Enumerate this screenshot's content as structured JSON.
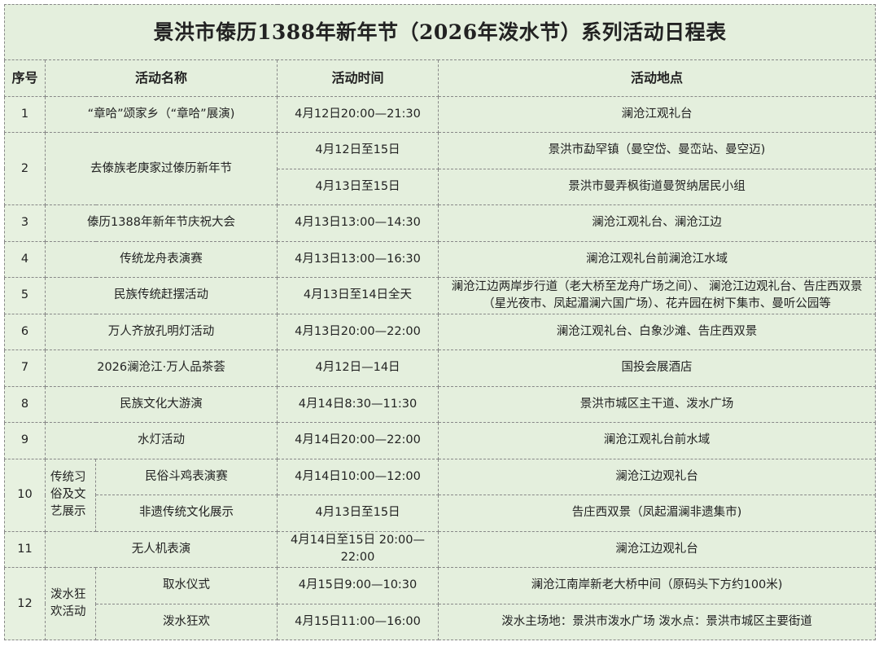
{
  "title": "景洪市傣历1388年新年节（2026年泼水节）系列活动日程表",
  "headers": {
    "seq": "序号",
    "name": "活动名称",
    "time": "活动时间",
    "place": "活动地点"
  },
  "rows": [
    {
      "seq": "1",
      "name": "“章哈”颂家乡（“章哈”展演)",
      "time": "4月12日20:00—21:30",
      "place": "澜沧江观礼台"
    },
    {
      "seq": "2",
      "name": "去傣族老庚家过傣历新年节",
      "items": [
        {
          "time": "4月12日至15日",
          "place": "景洪市勐罕镇（曼空岱、曼峦站、曼空迈)"
        },
        {
          "time": "4月13日至15日",
          "place": "景洪市曼弄枫街道曼贺纳居民小组"
        }
      ]
    },
    {
      "seq": "3",
      "name": "傣历1388年新年节庆祝大会",
      "time": "4月13日13:00—14:30",
      "place": "澜沧江观礼台、澜沧江边"
    },
    {
      "seq": "4",
      "name": "传统龙舟表演赛",
      "time": "4月13日13:00—16:30",
      "place": "澜沧江观礼台前澜沧江水域"
    },
    {
      "seq": "5",
      "name": "民族传统赶摆活动",
      "time": "4月13日至14日全天",
      "place": "澜沧江边两岸步行道（老大桥至龙舟广场之间）、 澜沧江边观礼台、告庄西双景（星光夜市、凤起湄澜六国广场）、花卉园在树下集市、曼听公园等"
    },
    {
      "seq": "6",
      "name": "万人齐放孔明灯活动",
      "time": "4月13日20:00—22:00",
      "place": "澜沧江观礼台、白象沙滩、告庄西双景"
    },
    {
      "seq": "7",
      "name": "2026澜沧江·万人品茶荟",
      "time": "4月12日—14日",
      "place": "国投会展酒店"
    },
    {
      "seq": "8",
      "name": "民族文化大游演",
      "time": "4月14日8:30—11:30",
      "place": "景洪市城区主干道、泼水广场"
    },
    {
      "seq": "9",
      "name": "水灯活动",
      "time": "4月14日20:00—22:00",
      "place": "澜沧江观礼台前水域"
    },
    {
      "seq": "10",
      "group": "传统习俗及文艺展示",
      "items": [
        {
          "name": "民俗斗鸡表演赛",
          "time": "4月14日10:00—12:00",
          "place": "澜沧江边观礼台"
        },
        {
          "name": "非遗传统文化展示",
          "time": "4月13日至15日",
          "place": "告庄西双景（凤起湄澜非遗集市)"
        }
      ]
    },
    {
      "seq": "11",
      "name": "无人机表演",
      "time": "4月14日至15日 20:00—22:00",
      "place": "澜沧江边观礼台"
    },
    {
      "seq": "12",
      "group": "泼水狂欢活动",
      "items": [
        {
          "name": "取水仪式",
          "time": "4月15日9:00—10:30",
          "place": "澜沧江南岸新老大桥中间（原码头下方约100米)"
        },
        {
          "name": "泼水狂欢",
          "time": "4月15日11:00—16:00",
          "place": "泼水主场地：景洪市泼水广场 泼水点：景洪市城区主要街道"
        }
      ]
    }
  ]
}
